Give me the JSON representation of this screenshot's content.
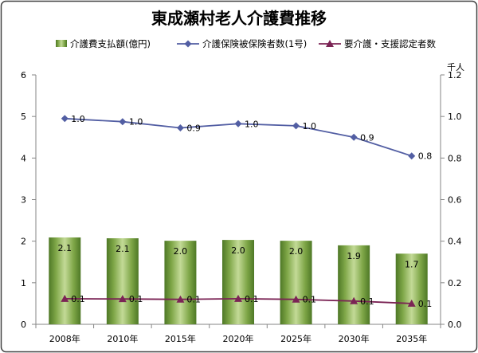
{
  "chart_data": {
    "type": "bar",
    "title": "東成瀬村老人介護費推移",
    "categories": [
      "2008年",
      "2010年",
      "2015年",
      "2020年",
      "2025年",
      "2030年",
      "2035年"
    ],
    "series": [
      {
        "name": "介護費支払額(億円)",
        "type": "bar",
        "axis": "left",
        "color": "#8db04f",
        "values": [
          2.09,
          2.07,
          2.01,
          2.03,
          2.01,
          1.9,
          1.7
        ],
        "labels": [
          "2.1",
          "2.1",
          "2.0",
          "2.0",
          "2.0",
          "1.9",
          "1.7"
        ]
      },
      {
        "name": "介護保険被保険者数(1号)",
        "type": "line",
        "axis": "right",
        "marker": "diamond",
        "color": "#525ea3",
        "values": [
          0.99,
          0.975,
          0.945,
          0.965,
          0.955,
          0.9,
          0.81
        ],
        "labels": [
          "1.0",
          "1.0",
          "0.9",
          "1.0",
          "1.0",
          "0.9",
          "0.8"
        ]
      },
      {
        "name": "要介護・支援認定者数",
        "type": "line",
        "axis": "right",
        "marker": "triangle",
        "color": "#7b2455",
        "values": [
          0.123,
          0.122,
          0.12,
          0.123,
          0.12,
          0.112,
          0.1
        ],
        "labels": [
          "0.1",
          "0.1",
          "0.1",
          "0.1",
          "0.1",
          "0.1",
          "0.1"
        ]
      }
    ],
    "y_left": {
      "ylim": [
        0,
        6
      ],
      "tick_labels": [
        "0",
        "1",
        "2",
        "3",
        "4",
        "5",
        "6"
      ]
    },
    "y_right": {
      "ylim": [
        0,
        1.2
      ],
      "tick_labels": [
        "0.0",
        "0.2",
        "0.4",
        "0.6",
        "0.8",
        "1.0",
        "1.2"
      ],
      "unit": "千人"
    },
    "grid": false,
    "legend": "top"
  }
}
